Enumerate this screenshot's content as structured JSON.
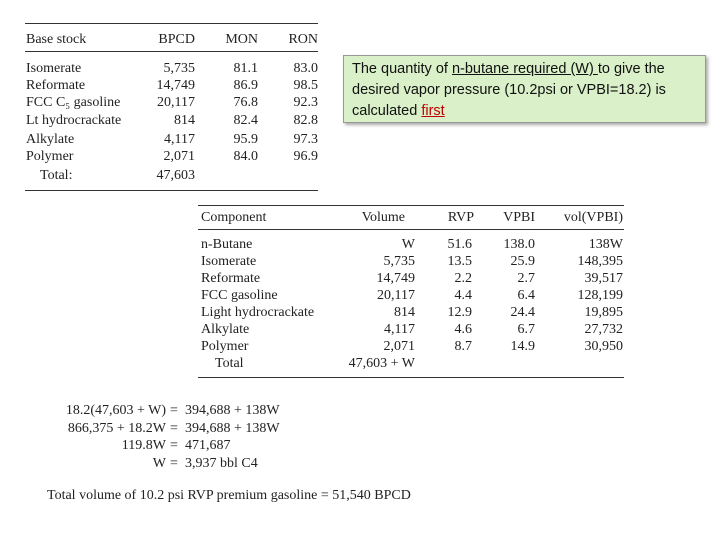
{
  "table1": {
    "header": [
      "Base stock",
      "BPCD",
      "MON",
      "RON"
    ],
    "rows": [
      [
        "Isomerate",
        "5,735",
        "81.1",
        "83.0"
      ],
      [
        "Reformate",
        "14,749",
        "86.9",
        "98.5"
      ],
      [
        "FCC C₅ gasoline",
        "20,117",
        "76.8",
        "92.3"
      ],
      [
        "Lt hydrocrackate",
        "814",
        "82.4",
        "82.8"
      ],
      [
        "Alkylate",
        "4,117",
        "95.9",
        "97.3"
      ],
      [
        "Polymer",
        "2,071",
        "84.0",
        "96.9"
      ],
      [
        "Total:",
        "47,603",
        "",
        ""
      ]
    ]
  },
  "callout": {
    "parts": [
      {
        "text": "The quantity of ",
        "style": "plain"
      },
      {
        "text": "n-butane required  (W) ",
        "style": "underline"
      },
      {
        "text": "to give the desired vapor pressure (10.2psi or VPBI=18.2) is calculated ",
        "style": "plain"
      },
      {
        "text": "first",
        "style": "red-underline"
      }
    ]
  },
  "table2": {
    "header": [
      "Component",
      "Volume",
      "RVP",
      "VPBI",
      "vol(VPBI)"
    ],
    "rows": [
      [
        "n-Butane",
        "W",
        "51.6",
        "138.0",
        "138W"
      ],
      [
        "Isomerate",
        "5,735",
        "13.5",
        "25.9",
        "148,395"
      ],
      [
        "Reformate",
        "14,749",
        "2.2",
        "2.7",
        "39,517"
      ],
      [
        "FCC gasoline",
        "20,117",
        "4.4",
        "6.4",
        "128,199"
      ],
      [
        "Light hydrocrackate",
        "814",
        "12.9",
        "24.4",
        "19,895"
      ],
      [
        "Alkylate",
        "4,117",
        "4.6",
        "6.7",
        "27,732"
      ],
      [
        "Polymer",
        "2,071",
        "8.7",
        "14.9",
        "30,950"
      ],
      [
        "Total",
        "47,603 + W",
        "",
        "",
        ""
      ]
    ]
  },
  "equations": [
    {
      "lhs": "18.2(47,603 + W)",
      "relation": "=",
      "rhs": "394,688 + 138W"
    },
    {
      "lhs": "866,375 + 18.2W",
      "relation": "=",
      "rhs": "394,688 + 138W"
    },
    {
      "lhs": "119.8W",
      "relation": "=",
      "rhs": "471,687"
    },
    {
      "lhs": "W",
      "relation": "=",
      "rhs": "3,937 bbl C4"
    }
  ],
  "conclusion": "Total volume of 10.2 psi RVP premium gasoline = 51,540 BPCD"
}
